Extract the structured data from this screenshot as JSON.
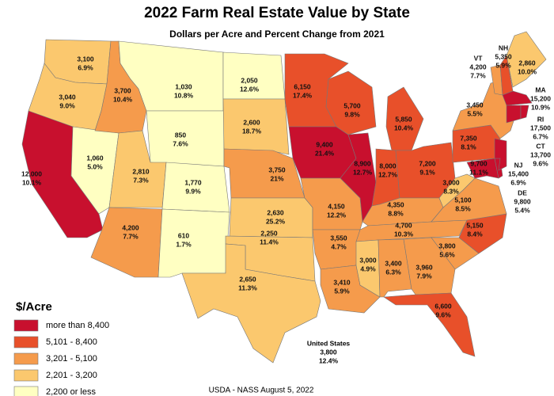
{
  "title": "2022 Farm Real Estate Value by State",
  "subtitle": "Dollars per Acre and Percent Change from 2021",
  "legend": {
    "title": "$/Acre",
    "items": [
      {
        "label": "more than 8,400",
        "color": "#c8102e"
      },
      {
        "label": "5,101 - 8,400",
        "color": "#e8502a"
      },
      {
        "label": "3,201 - 5,100",
        "color": "#f59b4c"
      },
      {
        "label": "2,201 - 3,200",
        "color": "#fbc86e"
      },
      {
        "label": "2,200 or less",
        "color": "#ffffc2"
      }
    ]
  },
  "states": [
    {
      "value": "3,100",
      "change": "6.9%",
      "color": "#fbc86e"
    },
    {
      "value": "3,040",
      "change": "9.0%",
      "color": "#fbc86e"
    },
    {
      "value": "12,000",
      "change": "10.1%",
      "color": "#c8102e"
    },
    {
      "value": "1,060",
      "change": "5.0%",
      "color": "#ffffc2"
    },
    {
      "value": "3,700",
      "change": "10.4%",
      "color": "#f59b4c"
    },
    {
      "value": "1,030",
      "change": "10.8%",
      "color": "#ffffc2"
    },
    {
      "value": "850",
      "change": "7.6%",
      "color": "#ffffc2"
    },
    {
      "value": "2,810",
      "change": "7.3%",
      "color": "#fbc86e"
    },
    {
      "value": "1,770",
      "change": "9.9%",
      "color": "#ffffc2"
    },
    {
      "value": "4,200",
      "change": "7.7%",
      "color": "#f59b4c"
    },
    {
      "value": "610",
      "change": "1.7%",
      "color": "#ffffc2"
    },
    {
      "value": "2,050",
      "change": "12.6%",
      "color": "#ffffc2"
    },
    {
      "value": "2,600",
      "change": "18.7%",
      "color": "#fbc86e"
    },
    {
      "value": "3,750",
      "change": "21%",
      "color": "#f59b4c"
    },
    {
      "value": "2,630",
      "change": "25.2%",
      "color": "#fbc86e"
    },
    {
      "value": "2,250",
      "change": "11.4%",
      "color": "#fbc86e"
    },
    {
      "value": "2,650",
      "change": "11.3%",
      "color": "#fbc86e"
    },
    {
      "value": "6,150",
      "change": "17.4%",
      "color": "#e8502a"
    },
    {
      "value": "9,400",
      "change": "21.4%",
      "color": "#c8102e"
    },
    {
      "value": "5,700",
      "change": "9.8%",
      "color": "#e8502a"
    },
    {
      "value": "4,150",
      "change": "12.2%",
      "color": "#f59b4c"
    },
    {
      "value": "3,550",
      "change": "4.7%",
      "color": "#f59b4c"
    },
    {
      "value": "3,410",
      "change": "5.9%",
      "color": "#f59b4c"
    },
    {
      "value": "8,900",
      "change": "12.7%",
      "color": "#c8102e"
    },
    {
      "value": "5,850",
      "change": "10.4%",
      "color": "#e8502a"
    },
    {
      "value": "8,000",
      "change": "12.7%",
      "color": "#e8502a"
    },
    {
      "value": "7,200",
      "change": "9.1%",
      "color": "#e8502a"
    },
    {
      "value": "4,350",
      "change": "8.8%",
      "color": "#f59b4c"
    },
    {
      "value": "4,700",
      "change": "10.3%",
      "color": "#f59b4c"
    },
    {
      "value": "3,000",
      "change": "4.9%",
      "color": "#fbc86e"
    },
    {
      "value": "3,400",
      "change": "6.3%",
      "color": "#f59b4c"
    },
    {
      "value": "3,960",
      "change": "7.9%",
      "color": "#f59b4c"
    },
    {
      "value": "6,600",
      "change": "9.6%",
      "color": "#e8502a"
    },
    {
      "value": "3,800",
      "change": "5.6%",
      "color": "#f59b4c"
    },
    {
      "value": "5,150",
      "change": "8.4%",
      "color": "#e8502a"
    },
    {
      "value": "5,100",
      "change": "8.5%",
      "color": "#f59b4c"
    },
    {
      "value": "3,000",
      "change": "8.3%",
      "color": "#fbc86e"
    },
    {
      "value": "7,350",
      "change": "8.1%",
      "color": "#e8502a"
    },
    {
      "value": "3,450",
      "change": "5.5%",
      "color": "#f59b4c"
    },
    {
      "value": "9,700",
      "change": "11.1%",
      "color": "#c8102e"
    },
    {
      "name": "DE",
      "value": "9,800",
      "change": "5.4%",
      "color": "#c8102e"
    },
    {
      "name": "NJ",
      "value": "15,400",
      "change": "6.9%",
      "color": "#c8102e"
    },
    {
      "name": "VT",
      "value": "4,200",
      "change": "7.7%",
      "color": "#f59b4c"
    },
    {
      "name": "NH",
      "value": "5,350",
      "change": "5.9%",
      "color": "#e8502a"
    },
    {
      "value": "2,860",
      "change": "10.0%",
      "color": "#fbc86e"
    },
    {
      "name": "MA",
      "value": "15,200",
      "change": "10.9%",
      "color": "#c8102e"
    },
    {
      "name": "CT",
      "value": "13,700",
      "change": "9.6%",
      "color": "#c8102e"
    },
    {
      "name": "RI",
      "value": "17,500",
      "change": "6.7%",
      "color": "#c8102e"
    }
  ],
  "us": {
    "label": "United States",
    "value": "3,800",
    "change": "12.4%"
  },
  "footer": "USDA - NASS August 5, 2022"
}
